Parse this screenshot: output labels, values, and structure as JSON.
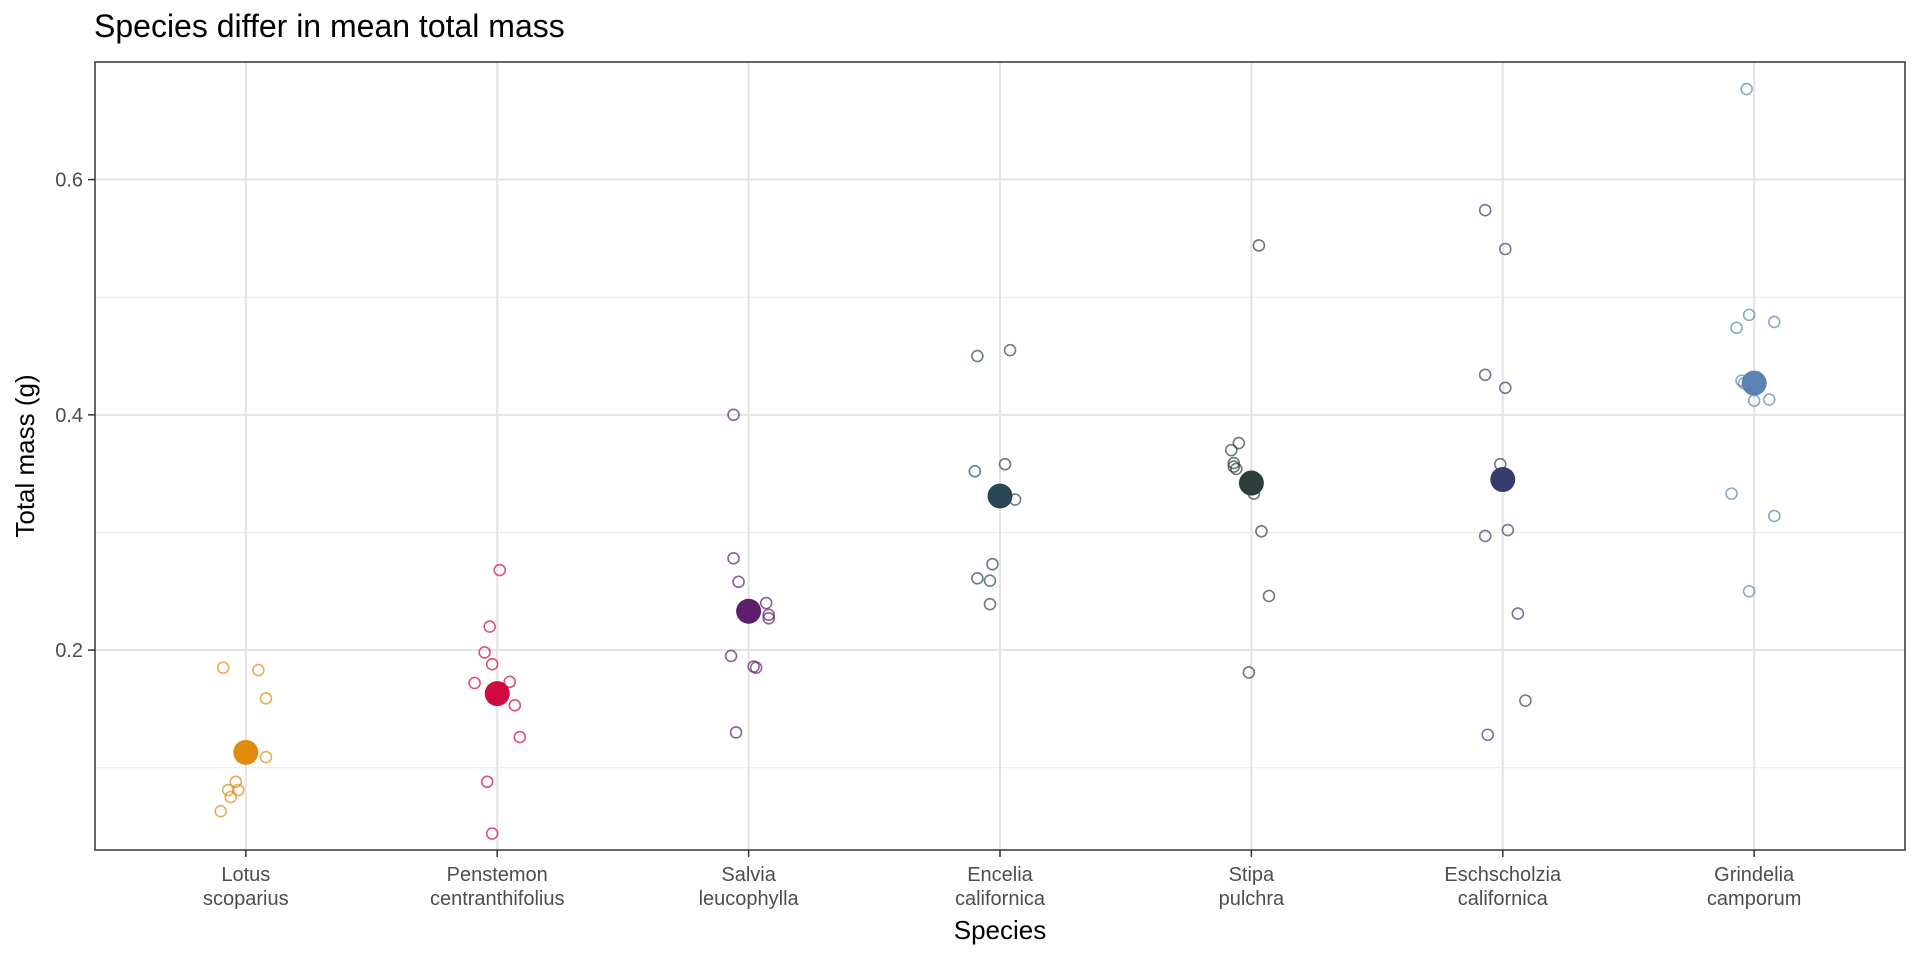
{
  "chart_data": {
    "type": "scatter",
    "title": "Species differ in mean total mass",
    "xlabel": "Species",
    "ylabel": "Total mass (g)",
    "ylim": [
      0.03,
      0.7
    ],
    "yticks": [
      0.2,
      0.4,
      0.6
    ],
    "ytick_labels": [
      "0.2",
      "0.4",
      "0.6"
    ],
    "grid": true,
    "legend": "none",
    "categories": [
      {
        "line1": "Lotus",
        "line2": "scoparius"
      },
      {
        "line1": "Penstemon",
        "line2": "centranthifolius"
      },
      {
        "line1": "Salvia",
        "line2": "leucophylla"
      },
      {
        "line1": "Encelia",
        "line2": "californica"
      },
      {
        "line1": "Stipa",
        "line2": "pulchra"
      },
      {
        "line1": "Eschscholzia",
        "line2": "californica"
      },
      {
        "line1": "Grindelia",
        "line2": "camporum"
      }
    ],
    "series": [
      {
        "color": "#E08A0E",
        "mean": 0.113,
        "points": [
          [
            -0.09,
            0.185
          ],
          [
            0.05,
            0.183
          ],
          [
            0.08,
            0.159
          ],
          [
            0.08,
            0.109
          ],
          [
            -0.04,
            0.088
          ],
          [
            -0.07,
            0.081
          ],
          [
            -0.03,
            0.081
          ],
          [
            -0.06,
            0.075
          ],
          [
            -0.1,
            0.063
          ]
        ]
      },
      {
        "color": "#D0093F",
        "mean": 0.163,
        "points": [
          [
            0.01,
            0.268
          ],
          [
            -0.03,
            0.22
          ],
          [
            -0.05,
            0.198
          ],
          [
            -0.02,
            0.188
          ],
          [
            -0.09,
            0.172
          ],
          [
            0.05,
            0.173
          ],
          [
            0.07,
            0.153
          ],
          [
            0.09,
            0.126
          ],
          [
            -0.04,
            0.088
          ],
          [
            -0.02,
            0.044
          ]
        ]
      },
      {
        "color": "#5B1F6B",
        "mean": 0.233,
        "points": [
          [
            -0.06,
            0.4
          ],
          [
            -0.06,
            0.278
          ],
          [
            -0.04,
            0.258
          ],
          [
            0.07,
            0.24
          ],
          [
            0.08,
            0.23
          ],
          [
            0.08,
            0.227
          ],
          [
            -0.07,
            0.195
          ],
          [
            0.02,
            0.186
          ],
          [
            0.03,
            0.185
          ],
          [
            -0.05,
            0.13
          ]
        ]
      },
      {
        "color": "#2B4655",
        "mean": 0.331,
        "points": [
          [
            0.04,
            0.455
          ],
          [
            -0.09,
            0.45
          ],
          [
            0.02,
            0.358
          ],
          [
            -0.1,
            0.352
          ],
          [
            0.06,
            0.328
          ],
          [
            -0.03,
            0.273
          ],
          [
            -0.09,
            0.261
          ],
          [
            -0.04,
            0.259
          ],
          [
            -0.04,
            0.239
          ]
        ]
      },
      {
        "color": "#2E3E3D",
        "mean": 0.342,
        "points": [
          [
            0.03,
            0.544
          ],
          [
            -0.05,
            0.376
          ],
          [
            -0.08,
            0.37
          ],
          [
            -0.07,
            0.359
          ],
          [
            -0.07,
            0.356
          ],
          [
            -0.06,
            0.354
          ],
          [
            0.01,
            0.333
          ],
          [
            0.04,
            0.301
          ],
          [
            0.07,
            0.246
          ],
          [
            -0.01,
            0.181
          ]
        ]
      },
      {
        "color": "#3B3A6E",
        "mean": 0.345,
        "points": [
          [
            -0.07,
            0.574
          ],
          [
            0.01,
            0.541
          ],
          [
            -0.07,
            0.434
          ],
          [
            0.01,
            0.423
          ],
          [
            -0.01,
            0.358
          ],
          [
            0.02,
            0.302
          ],
          [
            -0.07,
            0.297
          ],
          [
            0.06,
            0.231
          ],
          [
            0.09,
            0.157
          ],
          [
            -0.06,
            0.128
          ]
        ]
      },
      {
        "color": "#5B82B4",
        "mean": 0.427,
        "points": [
          [
            -0.03,
            0.677
          ],
          [
            -0.02,
            0.485
          ],
          [
            0.08,
            0.479
          ],
          [
            -0.07,
            0.474
          ],
          [
            -0.05,
            0.429
          ],
          [
            -0.04,
            0.427
          ],
          [
            0,
            0.412
          ],
          [
            0.06,
            0.413
          ],
          [
            -0.09,
            0.333
          ],
          [
            0.08,
            0.314
          ],
          [
            -0.02,
            0.25
          ]
        ]
      }
    ]
  }
}
